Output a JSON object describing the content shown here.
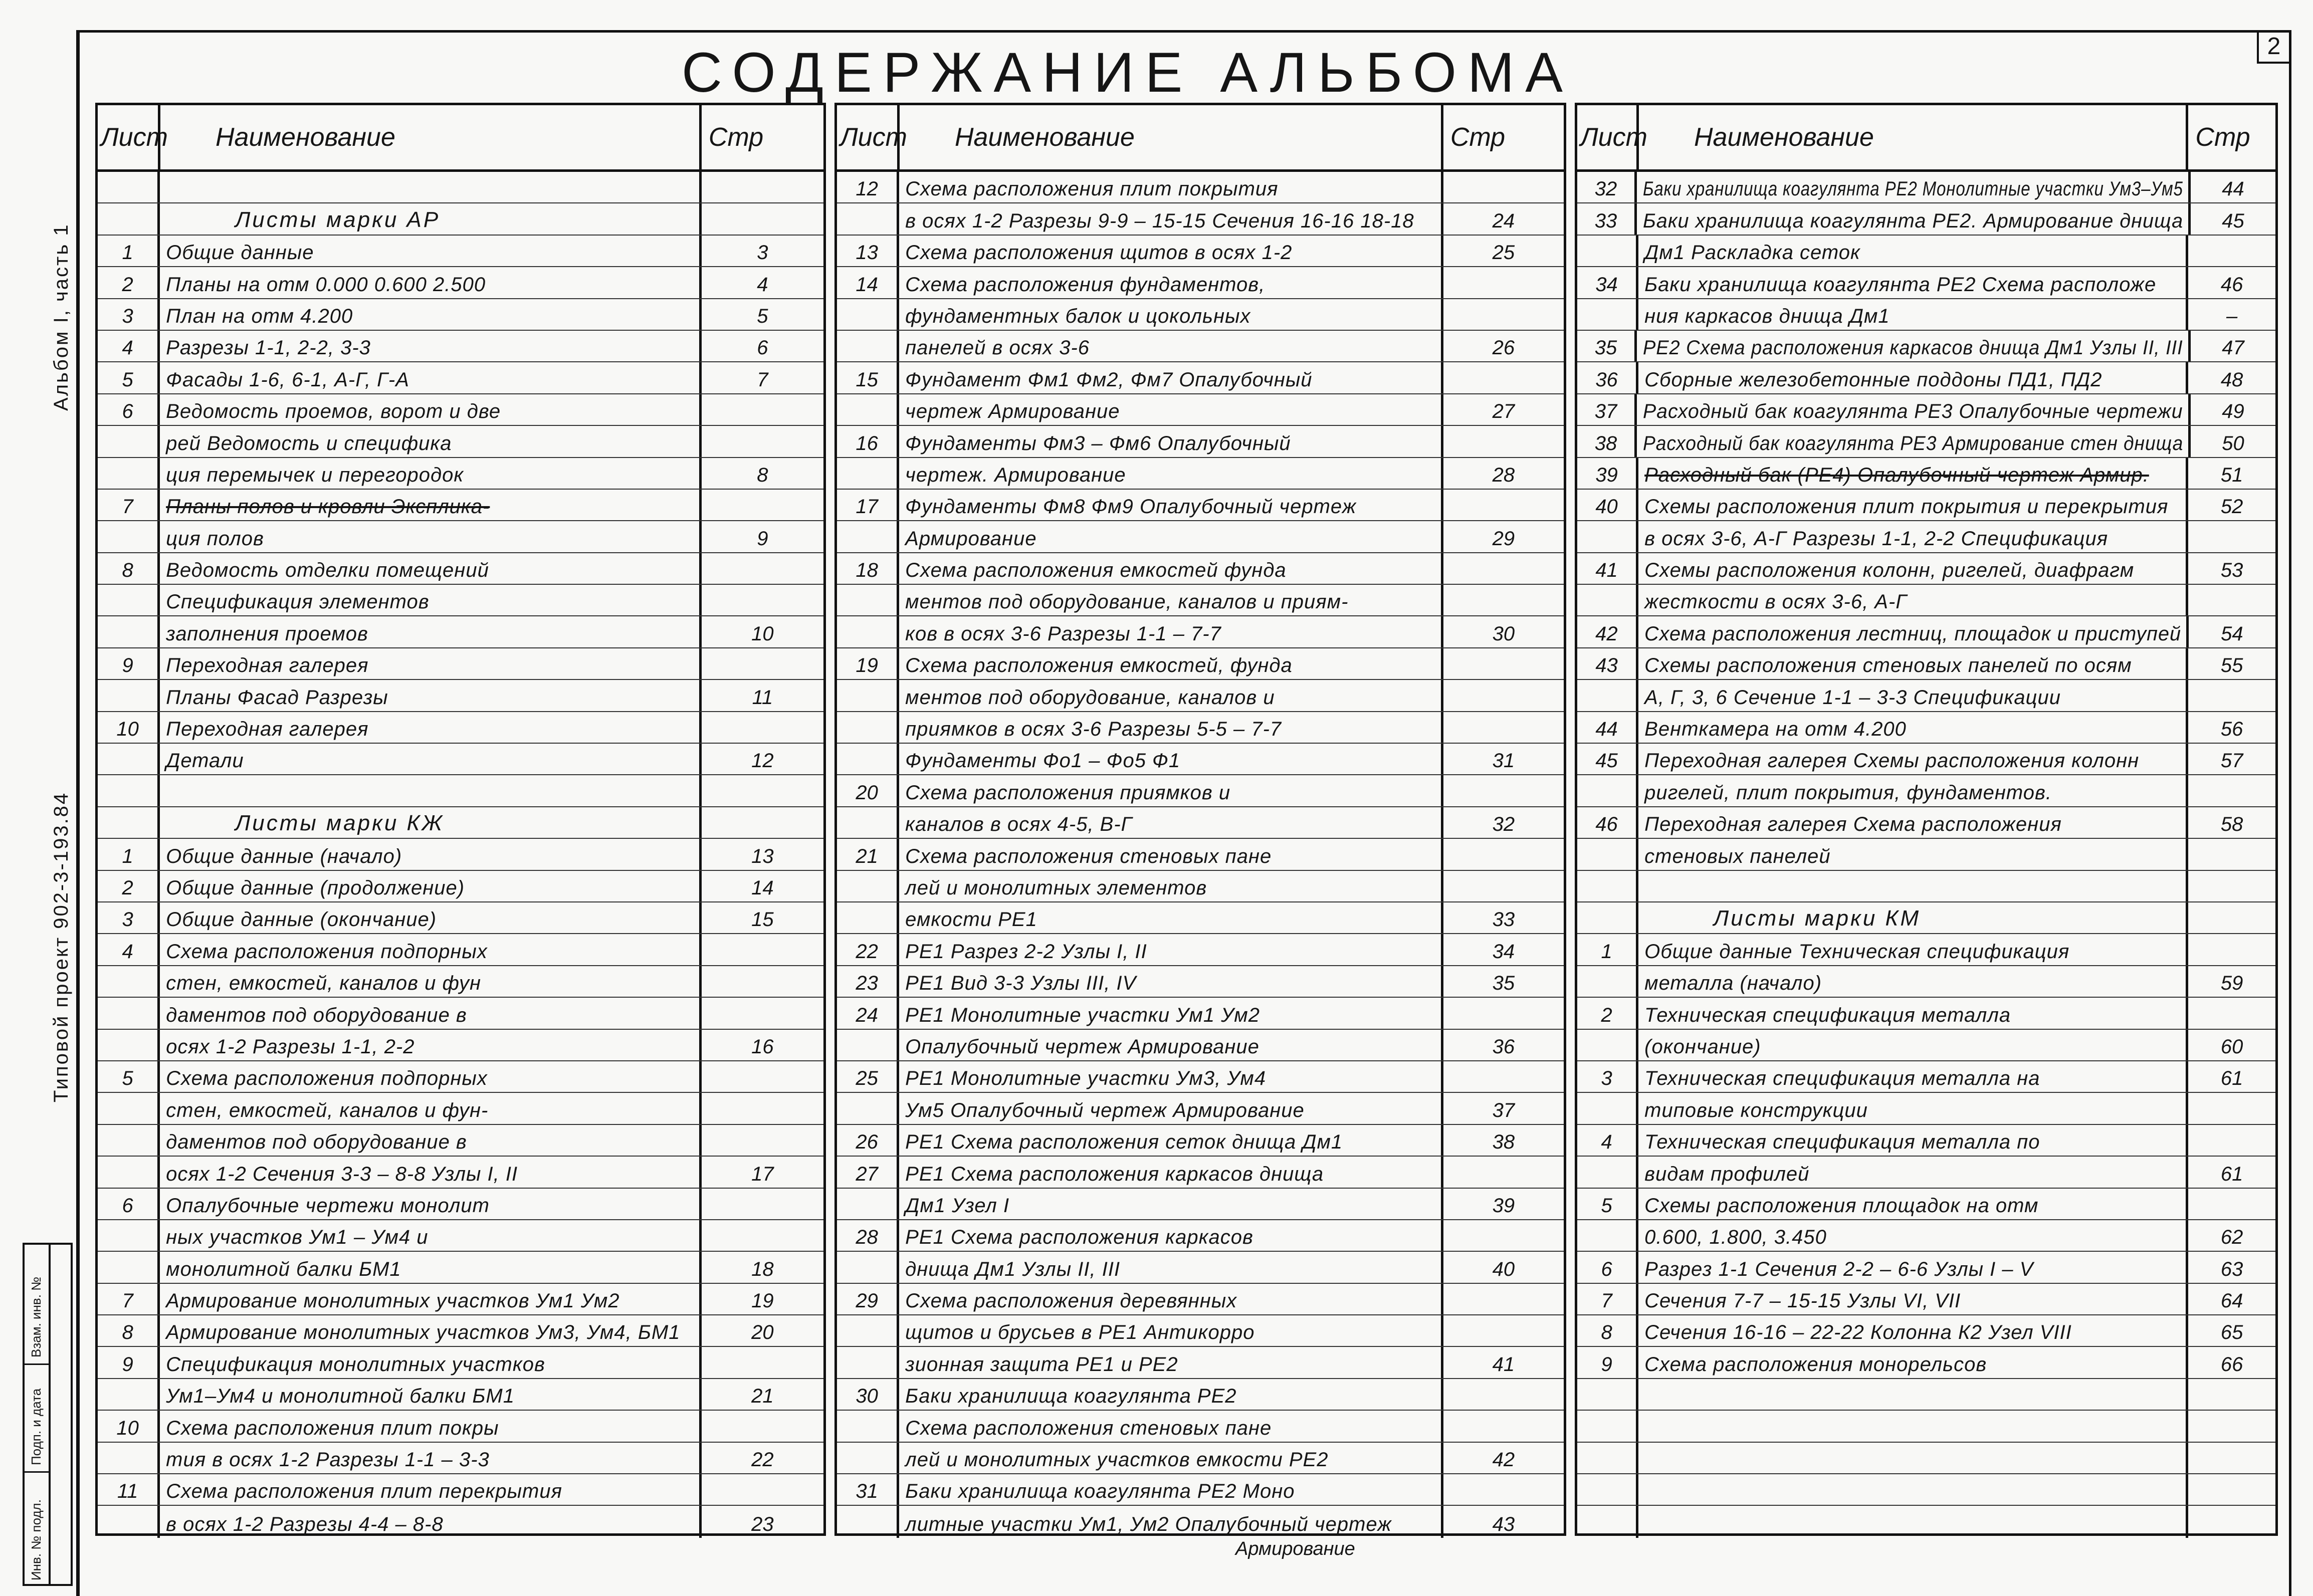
{
  "title": "СОДЕРЖАНИЕ АЛЬБОМА",
  "page_number": "2",
  "side_labels": {
    "album": "Альбом I, часть 1",
    "project": "Типовой проект 902-3-193.84"
  },
  "stamp": [
    "Взам. инв. №",
    "Подп. и дата",
    "Инв. № подл."
  ],
  "columns": {
    "sheet": "Лист",
    "name": "Наименование",
    "page": "Стр"
  },
  "tables": [
    {
      "rows": [
        {
          "n": "",
          "t": "",
          "p": ""
        },
        {
          "n": "",
          "t": "Листы марки АР",
          "p": "",
          "h": true
        },
        {
          "n": "1",
          "t": "Общие данные",
          "p": "3"
        },
        {
          "n": "2",
          "t": "Планы на отм 0.000  0.600  2.500",
          "p": "4"
        },
        {
          "n": "3",
          "t": "План на отм  4.200",
          "p": "5"
        },
        {
          "n": "4",
          "t": "Разрезы 1-1, 2-2, 3-3",
          "p": "6"
        },
        {
          "n": "5",
          "t": "Фасады 1-6, 6-1, А-Г, Г-А",
          "p": "7"
        },
        {
          "n": "6",
          "t": "Ведомость проемов, ворот и две",
          "p": ""
        },
        {
          "n": "",
          "t": "рей Ведомость и спецификa",
          "p": ""
        },
        {
          "n": "",
          "t": "ция перемычек и перегородок",
          "p": "8"
        },
        {
          "n": "7",
          "t": "Планы полов и кровли Экспликa-",
          "p": "",
          "s": true
        },
        {
          "n": "",
          "t": "ция полов",
          "p": "9"
        },
        {
          "n": "8",
          "t": "Ведомость отделки помещений",
          "p": ""
        },
        {
          "n": "",
          "t": "Спецификация элементов",
          "p": ""
        },
        {
          "n": "",
          "t": "заполнения проемов",
          "p": "10"
        },
        {
          "n": "9",
          "t": "Переходная галерея",
          "p": ""
        },
        {
          "n": "",
          "t": "Планы Фасад Разрезы",
          "p": "11"
        },
        {
          "n": "10",
          "t": "Переходная галерея",
          "p": ""
        },
        {
          "n": "",
          "t": "   Детали",
          "p": "12"
        },
        {
          "n": "",
          "t": "",
          "p": ""
        },
        {
          "n": "",
          "t": "Листы марки КЖ",
          "p": "",
          "h": true
        },
        {
          "n": "1",
          "t": "Общие данные (начало)",
          "p": "13"
        },
        {
          "n": "2",
          "t": "Общие данные (продолжение)",
          "p": "14"
        },
        {
          "n": "3",
          "t": "Общие данные (окончание)",
          "p": "15"
        },
        {
          "n": "4",
          "t": "Схема расположения подпорных",
          "p": ""
        },
        {
          "n": "",
          "t": "стен, емкостей, каналов и фун",
          "p": ""
        },
        {
          "n": "",
          "t": "даментов под оборудование в",
          "p": ""
        },
        {
          "n": "",
          "t": "осях 1-2 Разрезы 1-1, 2-2",
          "p": "16"
        },
        {
          "n": "5",
          "t": "Схема расположения подпорных",
          "p": ""
        },
        {
          "n": "",
          "t": "стен, емкостей, каналов и фун-",
          "p": ""
        },
        {
          "n": "",
          "t": "даментов под оборудование в",
          "p": ""
        },
        {
          "n": "",
          "t": "осях 1-2 Сечения 3-3 – 8-8 Узлы I, II",
          "p": "17"
        },
        {
          "n": "6",
          "t": "Опалубочные чертежи монолит",
          "p": ""
        },
        {
          "n": "",
          "t": "ных участков Ум1 – Ум4 и",
          "p": ""
        },
        {
          "n": "",
          "t": "монолитной балки БМ1",
          "p": "18"
        },
        {
          "n": "7",
          "t": "Армирование монолитных участков Ум1 Ум2",
          "p": "19"
        },
        {
          "n": "8",
          "t": "Армирование монолитных участков Ум3, Ум4, БМ1",
          "p": "20"
        },
        {
          "n": "9",
          "t": "Спецификация монолитных участков",
          "p": ""
        },
        {
          "n": "",
          "t": "Ум1–Ум4 и монолитной балки БМ1",
          "p": "21"
        },
        {
          "n": "10",
          "t": "Схема расположения плит покры",
          "p": ""
        },
        {
          "n": "",
          "t": "тия в осях 1-2 Разрезы 1-1 – 3-3",
          "p": "22"
        },
        {
          "n": "11",
          "t": "Схема расположения плит перекрытия",
          "p": ""
        },
        {
          "n": "",
          "t": "в осях 1-2 Разрезы 4-4 – 8-8",
          "p": "23"
        }
      ]
    },
    {
      "rows": [
        {
          "n": "12",
          "t": "Схема расположения плит покрытия",
          "p": ""
        },
        {
          "n": "",
          "t": "в осях 1-2 Разрезы 9-9 – 15-15 Сечения 16-16 18-18",
          "p": "24"
        },
        {
          "n": "13",
          "t": "Схема расположения щитов в осях 1-2",
          "p": "25"
        },
        {
          "n": "14",
          "t": "Схема расположения фундаментов,",
          "p": ""
        },
        {
          "n": "",
          "t": "фундаментных балок и цокольных",
          "p": ""
        },
        {
          "n": "",
          "t": "панелей в осях 3-6",
          "p": "26"
        },
        {
          "n": "15",
          "t": "Фундамент Фм1 Фм2, Фм7 Опалубочный",
          "p": ""
        },
        {
          "n": "",
          "t": "чертеж Армирование",
          "p": "27"
        },
        {
          "n": "16",
          "t": "Фундаменты Фм3 – Фм6 Опалубочный",
          "p": ""
        },
        {
          "n": "",
          "t": "чертеж. Армирование",
          "p": "28"
        },
        {
          "n": "17",
          "t": "Фундаменты Фм8 Фм9 Опалубочный чертеж",
          "p": ""
        },
        {
          "n": "",
          "t": "Армирование",
          "p": "29"
        },
        {
          "n": "18",
          "t": "Схема расположения емкостей фунда",
          "p": ""
        },
        {
          "n": "",
          "t": "ментов под оборудование, каналов и приям-",
          "p": ""
        },
        {
          "n": "",
          "t": "ков в осях 3-6 Разрезы 1-1 – 7-7",
          "p": "30"
        },
        {
          "n": "19",
          "t": "Схема расположения емкостей, фунда",
          "p": ""
        },
        {
          "n": "",
          "t": "ментов под оборудование, каналов и",
          "p": ""
        },
        {
          "n": "",
          "t": "приямков в осях 3-6 Разрезы 5-5 – 7-7",
          "p": ""
        },
        {
          "n": "",
          "t": "Фундаменты Фо1 – Фо5 Ф1",
          "p": "31"
        },
        {
          "n": "20",
          "t": "Схема расположения приямков и",
          "p": ""
        },
        {
          "n": "",
          "t": "каналов в осях 4-5, В-Г",
          "p": "32"
        },
        {
          "n": "21",
          "t": "Схема расположения стеновых пане",
          "p": ""
        },
        {
          "n": "",
          "t": "лей и монолитных элементов",
          "p": ""
        },
        {
          "n": "",
          "t": "емкости РЕ1",
          "p": "33"
        },
        {
          "n": "22",
          "t": "РЕ1 Разрез 2-2 Узлы I, II",
          "p": "34"
        },
        {
          "n": "23",
          "t": "РЕ1 Вид 3-3 Узлы III, IV",
          "p": "35"
        },
        {
          "n": "24",
          "t": "РЕ1 Монолитные участки Ум1 Ум2",
          "p": ""
        },
        {
          "n": "",
          "t": "Опалубочный чертеж Армирование",
          "p": "36"
        },
        {
          "n": "25",
          "t": "РЕ1 Монолитные участки Ум3, Ум4",
          "p": ""
        },
        {
          "n": "",
          "t": "Ум5 Опалубочный чертеж Армирование",
          "p": "37"
        },
        {
          "n": "26",
          "t": "РЕ1 Схема расположения сеток днища Дм1",
          "p": "38"
        },
        {
          "n": "27",
          "t": "РЕ1 Схема расположения каркасов днища",
          "p": ""
        },
        {
          "n": "",
          "t": "Дм1 Узел I",
          "p": "39"
        },
        {
          "n": "28",
          "t": "РЕ1 Схема расположения каркасов",
          "p": ""
        },
        {
          "n": "",
          "t": "днища Дм1 Узлы II, III",
          "p": "40"
        },
        {
          "n": "29",
          "t": "Схема расположения деревянных",
          "p": ""
        },
        {
          "n": "",
          "t": "щитов и брусьев в РЕ1 Антикорро",
          "p": ""
        },
        {
          "n": "",
          "t": "зионная защита РЕ1 и РЕ2",
          "p": "41"
        },
        {
          "n": "30",
          "t": "Баки хранилища коагулянта РЕ2",
          "p": ""
        },
        {
          "n": "",
          "t": "Схема расположения стеновых пане",
          "p": ""
        },
        {
          "n": "",
          "t": "лей и монолитных участков емкости РЕ2",
          "p": "42"
        },
        {
          "n": "31",
          "t": "Баки хранилища коагулянта РЕ2 Моно",
          "p": ""
        },
        {
          "n": "",
          "t": "литные участки Ум1, Ум2 Опалубочный чертеж",
          "p": "43"
        }
      ],
      "overflow": "Армирование"
    },
    {
      "rows": [
        {
          "n": "32",
          "t": "Баки хранилища коагулянта РЕ2 Монолитные участки Ум3–Ум5",
          "p": "44"
        },
        {
          "n": "33",
          "t": "Баки хранилища коагулянта РЕ2. Армирование днища",
          "p": "45"
        },
        {
          "n": "",
          "t": "Дм1 Раскладка сеток",
          "p": ""
        },
        {
          "n": "34",
          "t": "Баки хранилища коагулянта РЕ2 Схема расположе",
          "p": "46"
        },
        {
          "n": "",
          "t": "ния каркасов днища Дм1",
          "p": "–"
        },
        {
          "n": "35",
          "t": "РЕ2 Схема расположения каркасов днища Дм1 Узлы II, III",
          "p": "47"
        },
        {
          "n": "36",
          "t": "Сборные железобетонные поддоны ПД1, ПД2",
          "p": "48"
        },
        {
          "n": "37",
          "t": "Расходный бак коагулянта РЕ3 Опалубочные чертежи",
          "p": "49"
        },
        {
          "n": "38",
          "t": "Расходный бак коагулянта РЕ3 Армирование стен днища",
          "p": "50"
        },
        {
          "n": "39",
          "t": "Расходный бак (РЕ4) Опалубочный чертеж Армир.",
          "p": "51",
          "s": true
        },
        {
          "n": "40",
          "t": "Схемы расположения плит покрытия и перекрытия",
          "p": "52"
        },
        {
          "n": "",
          "t": "в осях 3-6, А-Г Разрезы 1-1, 2-2 Спецификация",
          "p": ""
        },
        {
          "n": "41",
          "t": "Схемы расположения колонн, ригелей, диафрагм",
          "p": "53"
        },
        {
          "n": "",
          "t": "жесткости в осях 3-6, А-Г",
          "p": ""
        },
        {
          "n": "42",
          "t": "Схема расположения лестниц, площадок и приступей",
          "p": "54"
        },
        {
          "n": "43",
          "t": "Схемы расположения стеновых панелей по осям",
          "p": "55"
        },
        {
          "n": "",
          "t": "А, Г, 3, 6 Сечение 1-1 – 3-3 Спецификации",
          "p": ""
        },
        {
          "n": "44",
          "t": "Венткамера на отм 4.200",
          "p": "56"
        },
        {
          "n": "45",
          "t": "Переходная галерея Схемы расположения колонн",
          "p": "57"
        },
        {
          "n": "",
          "t": "ригелей, плит покрытия, фундаментов.",
          "p": ""
        },
        {
          "n": "46",
          "t": "Переходная галерея Схема расположения",
          "p": "58"
        },
        {
          "n": "",
          "t": "стеновых панелей",
          "p": ""
        },
        {
          "n": "",
          "t": "",
          "p": ""
        },
        {
          "n": "",
          "t": "Листы марки КМ",
          "p": "",
          "h": true
        },
        {
          "n": "1",
          "t": " Общие данные Техническая спецификация",
          "p": ""
        },
        {
          "n": "",
          "t": "металла (начало)",
          "p": "59"
        },
        {
          "n": "2",
          "t": " Техническая спецификация металла",
          "p": ""
        },
        {
          "n": "",
          "t": "(окончание)",
          "p": "60"
        },
        {
          "n": "3",
          "t": " Техническая спецификация металла на",
          "p": "61"
        },
        {
          "n": "",
          "t": "типовые конструкции",
          "p": ""
        },
        {
          "n": "4",
          "t": " Техническая спецификация металла по",
          "p": ""
        },
        {
          "n": "",
          "t": "видам профилей",
          "p": "61"
        },
        {
          "n": "5",
          "t": " Схемы расположения площадок на отм",
          "p": ""
        },
        {
          "n": "",
          "t": " 0.600,  1.800,  3.450",
          "p": "62"
        },
        {
          "n": "6",
          "t": " Разрез 1-1 Сечения 2-2 – 6-6 Узлы I – V",
          "p": "63"
        },
        {
          "n": "7",
          "t": " Сечения 7-7 – 15-15 Узлы VI, VII",
          "p": "64"
        },
        {
          "n": "8",
          "t": " Сечения 16-16 – 22-22 Колонна К2 Узел VIII",
          "p": "65"
        },
        {
          "n": "9",
          "t": " Схема расположения монорельсов",
          "p": "66"
        },
        {
          "n": "",
          "t": "",
          "p": ""
        },
        {
          "n": "",
          "t": "",
          "p": ""
        },
        {
          "n": "",
          "t": "",
          "p": ""
        },
        {
          "n": "",
          "t": "",
          "p": ""
        },
        {
          "n": "",
          "t": "",
          "p": ""
        }
      ]
    }
  ]
}
